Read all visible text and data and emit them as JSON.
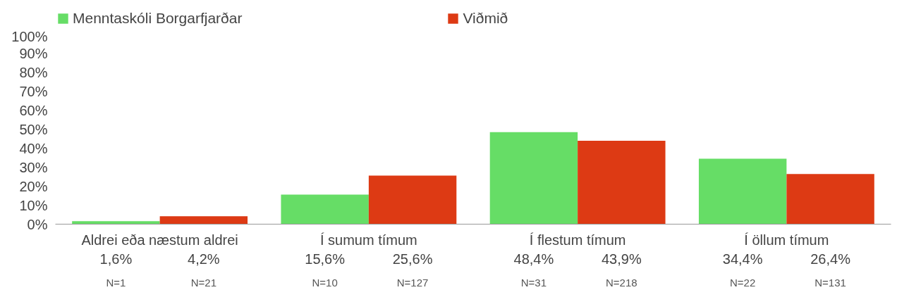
{
  "chart_data": {
    "type": "bar",
    "categories": [
      "Aldrei eða næstum aldrei",
      "Í sumum tímum",
      "Í flestum tímum",
      "Í öllum tímum"
    ],
    "series": [
      {
        "name": "Menntaskóli Borgarfjarðar",
        "color": "#66dd66",
        "values": [
          1.6,
          15.6,
          48.4,
          34.4
        ],
        "value_labels": [
          "1,6%",
          "15,6%",
          "48,4%",
          "34,4%"
        ]
      },
      {
        "name": "Viðmið",
        "color": "#dd3a14",
        "values": [
          4.2,
          25.6,
          43.9,
          26.4
        ],
        "value_labels": [
          "4,2%",
          "25,6%",
          "43,9%",
          "26,4%"
        ]
      }
    ],
    "annotations": [
      "N=1",
      "N=21",
      "N=10",
      "N=127",
      "N=31",
      "N=218",
      "N=22",
      "N=131"
    ],
    "ylim": [
      0,
      100
    ],
    "yticks": [
      {
        "value": 0,
        "label": "0%"
      },
      {
        "value": 10,
        "label": "10%"
      },
      {
        "value": 20,
        "label": "20%"
      },
      {
        "value": 30,
        "label": "30%"
      },
      {
        "value": 40,
        "label": "40%"
      },
      {
        "value": 50,
        "label": "50%"
      },
      {
        "value": 60,
        "label": "60%"
      },
      {
        "value": 70,
        "label": "70%"
      },
      {
        "value": 80,
        "label": "80%"
      },
      {
        "value": 90,
        "label": "90%"
      },
      {
        "value": 100,
        "label": "100%"
      }
    ],
    "grid": false,
    "legend": "top"
  }
}
